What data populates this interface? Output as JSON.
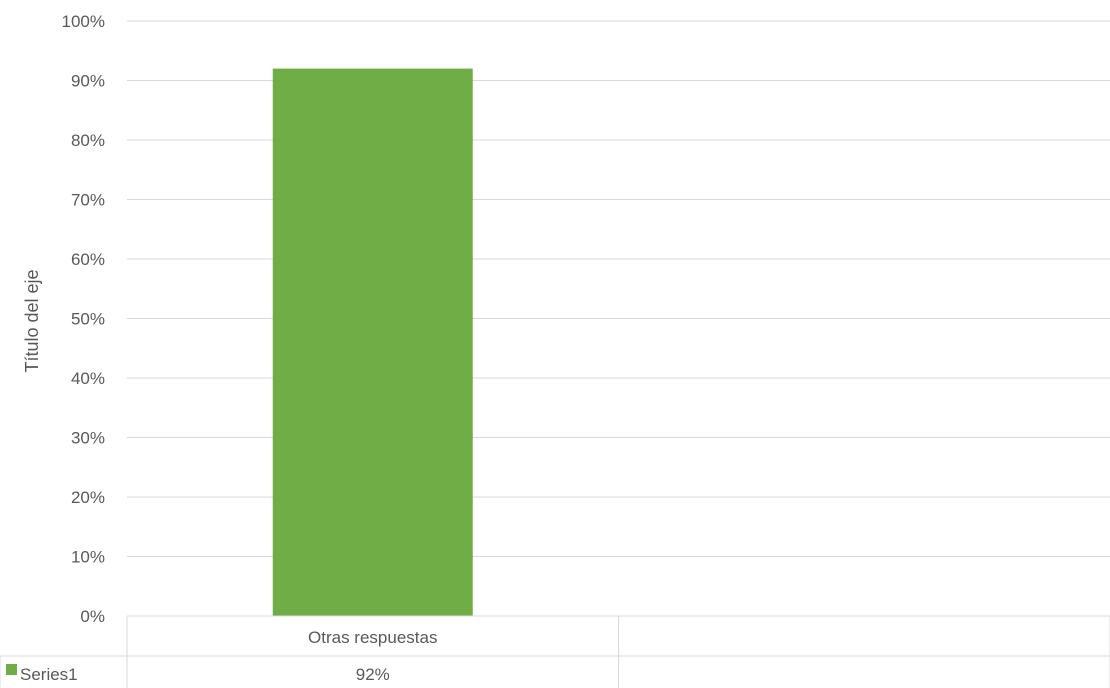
{
  "chart_data": {
    "type": "bar",
    "categories": [
      "Otras respuestas",
      ""
    ],
    "series": [
      {
        "name": "Series1",
        "values": [
          0.92,
          null
        ],
        "labels": [
          "92%",
          ""
        ],
        "color": "#70AD47"
      }
    ],
    "title": "",
    "xlabel": "",
    "ylabel": "Título del eje",
    "ylim": [
      0,
      1
    ],
    "yticks": [
      "0%",
      "10%",
      "20%",
      "30%",
      "40%",
      "50%",
      "60%",
      "70%",
      "80%",
      "90%",
      "100%"
    ],
    "grid": true,
    "legend": "data-table-left",
    "data_table": true
  }
}
